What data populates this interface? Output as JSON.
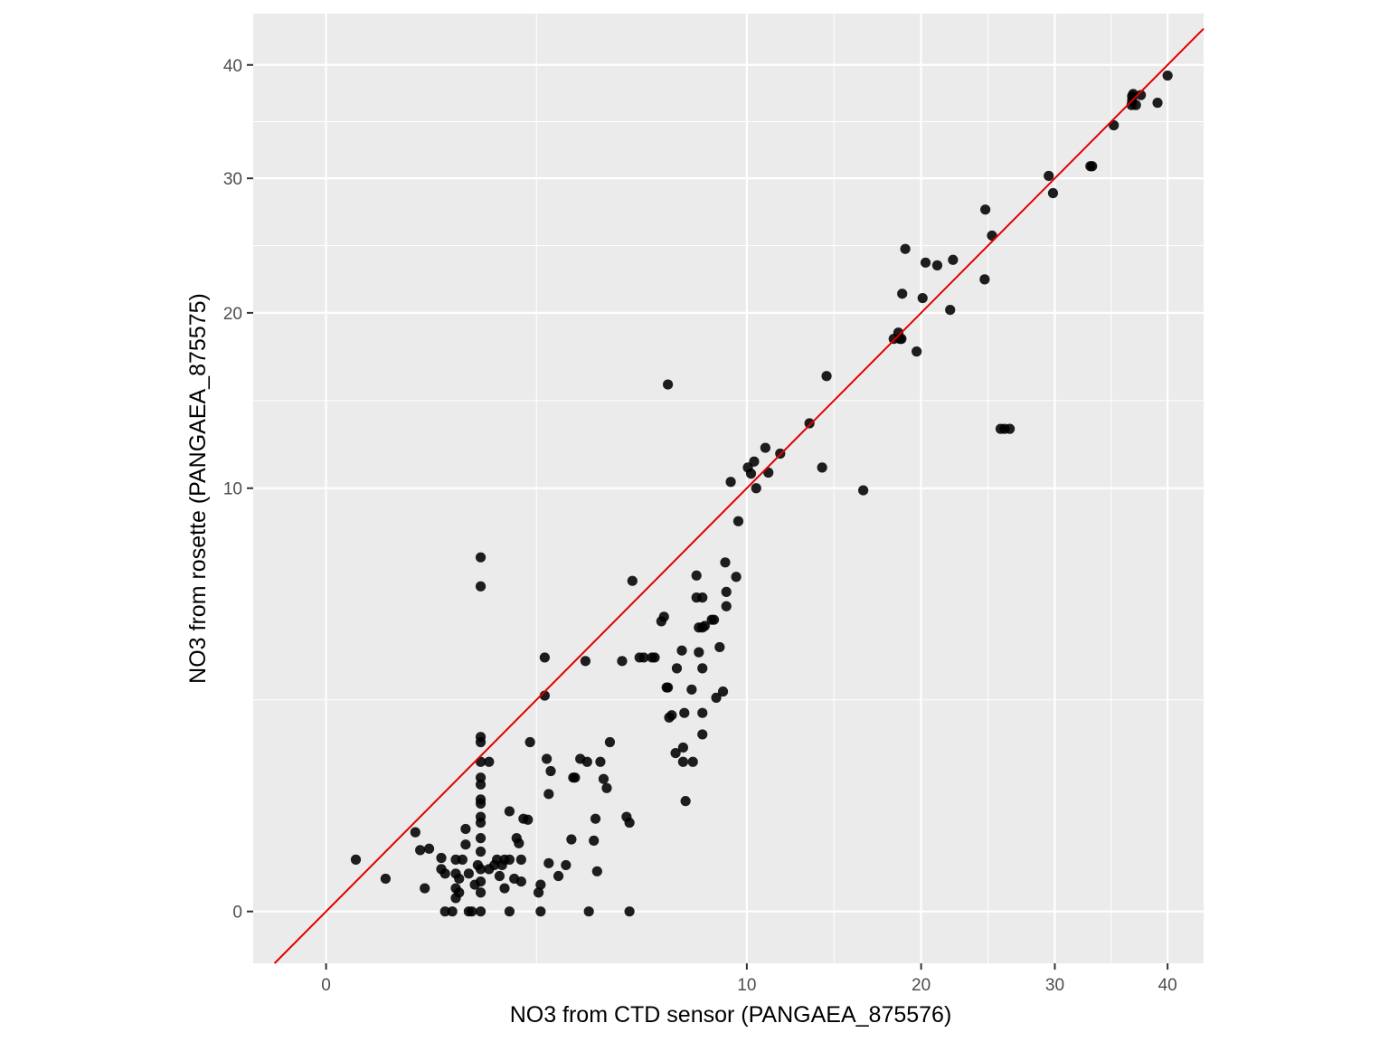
{
  "chart_data": {
    "type": "scatter",
    "xlabel": "NO3 from CTD sensor (PANGAEA_875576)",
    "ylabel": "NO3 from rosette (PANGAEA_875575)",
    "x_scale": "sqrt",
    "y_scale": "sqrt",
    "xlim": [
      -0.3,
      43.5
    ],
    "ylim": [
      -0.15,
      45
    ],
    "x_ticks": [
      0,
      10,
      20,
      30,
      40
    ],
    "y_ticks": [
      0,
      10,
      20,
      30,
      40
    ],
    "grid": true,
    "panel_background": "#ebebeb",
    "point_color": "#000000",
    "reference_line": {
      "type": "identity",
      "color": "#e00000"
    },
    "points": [
      [
        0.05,
        0.15
      ],
      [
        0.2,
        0.06
      ],
      [
        0.45,
        0.35
      ],
      [
        0.5,
        0.21
      ],
      [
        0.55,
        0.03
      ],
      [
        0.6,
        0.22
      ],
      [
        0.75,
        0.1
      ],
      [
        0.75,
        0.16
      ],
      [
        0.8,
        0
      ],
      [
        0.8,
        0.08
      ],
      [
        0.9,
        0
      ],
      [
        0.95,
        0.01
      ],
      [
        0.95,
        0.03
      ],
      [
        0.95,
        0.08
      ],
      [
        0.95,
        0.15
      ],
      [
        1.0,
        0.02
      ],
      [
        1.0,
        0.06
      ],
      [
        1.05,
        0.15
      ],
      [
        1.1,
        0.38
      ],
      [
        1.1,
        0.25
      ],
      [
        1.15,
        0.08
      ],
      [
        1.15,
        0
      ],
      [
        1.2,
        0
      ],
      [
        1.25,
        0.04
      ],
      [
        1.3,
        0.12
      ],
      [
        1.35,
        0.44
      ],
      [
        1.35,
        0.65
      ],
      [
        1.35,
        1.25
      ],
      [
        1.5,
        1.25
      ],
      [
        1.35,
        1.0
      ],
      [
        1.35,
        0.9
      ],
      [
        1.35,
        0.7
      ],
      [
        1.35,
        0.5
      ],
      [
        1.35,
        0.3
      ],
      [
        1.35,
        0.2
      ],
      [
        1.35,
        0.1
      ],
      [
        1.35,
        0.05
      ],
      [
        1.35,
        0.02
      ],
      [
        1.35,
        0
      ],
      [
        1.35,
        1.6
      ],
      [
        1.35,
        1.7
      ],
      [
        1.35,
        5.9
      ],
      [
        1.35,
        7.0
      ],
      [
        1.5,
        0.1
      ],
      [
        1.6,
        0.12
      ],
      [
        1.65,
        0.15
      ],
      [
        1.7,
        0.07
      ],
      [
        1.75,
        0.12
      ],
      [
        1.8,
        0.03
      ],
      [
        1.8,
        0.15
      ],
      [
        1.9,
        0
      ],
      [
        1.9,
        0.56
      ],
      [
        1.9,
        0.15
      ],
      [
        2.0,
        0.06
      ],
      [
        2.05,
        0.3
      ],
      [
        2.1,
        0.26
      ],
      [
        2.15,
        0.05
      ],
      [
        2.15,
        0.15
      ],
      [
        2.2,
        0.48
      ],
      [
        2.3,
        0.47
      ],
      [
        2.35,
        1.6
      ],
      [
        2.55,
        0.02
      ],
      [
        2.6,
        0
      ],
      [
        2.6,
        0.04
      ],
      [
        2.7,
        2.6
      ],
      [
        2.7,
        3.6
      ],
      [
        2.75,
        1.3
      ],
      [
        2.8,
        0.13
      ],
      [
        2.8,
        0.77
      ],
      [
        2.85,
        1.1
      ],
      [
        3.05,
        0.07
      ],
      [
        3.25,
        0.12
      ],
      [
        3.4,
        0.29
      ],
      [
        3.45,
        1.0
      ],
      [
        3.5,
        1.0
      ],
      [
        3.65,
        1.3
      ],
      [
        3.8,
        3.5
      ],
      [
        3.85,
        1.25
      ],
      [
        3.9,
        0
      ],
      [
        4.05,
        0.28
      ],
      [
        4.1,
        0.48
      ],
      [
        4.15,
        0.09
      ],
      [
        4.25,
        1.25
      ],
      [
        4.35,
        0.98
      ],
      [
        4.45,
        0.85
      ],
      [
        4.55,
        1.6
      ],
      [
        4.95,
        3.5
      ],
      [
        5.1,
        0.5
      ],
      [
        5.2,
        0.44
      ],
      [
        5.2,
        0
      ],
      [
        5.3,
        6.1
      ],
      [
        5.55,
        3.6
      ],
      [
        5.7,
        3.6
      ],
      [
        6.0,
        3.6
      ],
      [
        6.1,
        3.6
      ],
      [
        6.35,
        4.7
      ],
      [
        6.45,
        4.85
      ],
      [
        6.55,
        2.8
      ],
      [
        6.6,
        15.5
      ],
      [
        6.6,
        2.8
      ],
      [
        6.65,
        2.1
      ],
      [
        6.75,
        2.15
      ],
      [
        6.9,
        1.4
      ],
      [
        6.95,
        3.3
      ],
      [
        7.15,
        3.8
      ],
      [
        7.2,
        1.25
      ],
      [
        7.2,
        1.5
      ],
      [
        7.25,
        2.2
      ],
      [
        7.3,
        0.68
      ],
      [
        7.55,
        2.75
      ],
      [
        7.6,
        1.25
      ],
      [
        7.75,
        5.5
      ],
      [
        7.75,
        6.3
      ],
      [
        7.85,
        3.75
      ],
      [
        7.85,
        4.5
      ],
      [
        8.0,
        3.3
      ],
      [
        8.0,
        2.2
      ],
      [
        8.0,
        1.75
      ],
      [
        8.0,
        5.5
      ],
      [
        8.0,
        4.5
      ],
      [
        8.1,
        4.55
      ],
      [
        8.4,
        4.75
      ],
      [
        8.5,
        4.75
      ],
      [
        8.6,
        2.55
      ],
      [
        8.75,
        3.9
      ],
      [
        8.9,
        2.7
      ],
      [
        9.0,
        6.8
      ],
      [
        9.05,
        5.7
      ],
      [
        9.05,
        5.2
      ],
      [
        9.25,
        10.3
      ],
      [
        9.5,
        6.25
      ],
      [
        9.6,
        8.5
      ],
      [
        10.05,
        11.0
      ],
      [
        10.2,
        10.7
      ],
      [
        10.35,
        11.3
      ],
      [
        10.45,
        10.0
      ],
      [
        10.9,
        12.0
      ],
      [
        11.05,
        10.75
      ],
      [
        11.65,
        11.7
      ],
      [
        13.2,
        13.3
      ],
      [
        13.9,
        11.0
      ],
      [
        14.15,
        16.0
      ],
      [
        16.3,
        9.9
      ],
      [
        18.2,
        18.3
      ],
      [
        18.5,
        18.7
      ],
      [
        18.6,
        18.3
      ],
      [
        18.7,
        18.3
      ],
      [
        18.75,
        21.3
      ],
      [
        18.95,
        24.5
      ],
      [
        19.7,
        17.5
      ],
      [
        20.1,
        21.0
      ],
      [
        20.3,
        23.5
      ],
      [
        21.1,
        23.3
      ],
      [
        22.0,
        20.2
      ],
      [
        22.2,
        23.7
      ],
      [
        24.5,
        22.3
      ],
      [
        24.55,
        27.5
      ],
      [
        25.05,
        25.5
      ],
      [
        25.7,
        13.0
      ],
      [
        26.0,
        13.0
      ],
      [
        26.4,
        13.0
      ],
      [
        29.5,
        30.2
      ],
      [
        29.85,
        28.8
      ],
      [
        33.0,
        31.0
      ],
      [
        33.15,
        31.0
      ],
      [
        35.05,
        34.5
      ],
      [
        36.65,
        36.3
      ],
      [
        36.7,
        36.7
      ],
      [
        36.7,
        37.1
      ],
      [
        36.8,
        37.3
      ],
      [
        37.05,
        36.3
      ],
      [
        37.5,
        37.2
      ],
      [
        39.05,
        36.5
      ],
      [
        40.0,
        39.0
      ]
    ]
  }
}
